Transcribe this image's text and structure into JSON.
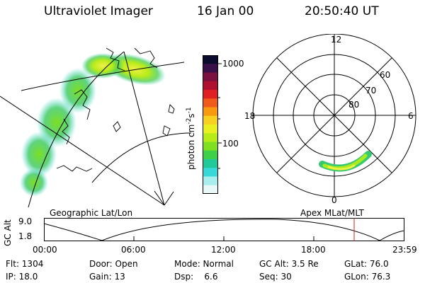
{
  "header": {
    "instrument": "Ultraviolet Imager",
    "date": "16 Jan 00",
    "time": "20:50:40 UT"
  },
  "colorbar": {
    "unit_label": "photon cm^-2 s^-1",
    "ticks": [
      "1000",
      "100"
    ],
    "colors": [
      "#0b0b2e",
      "#3a0f4a",
      "#7a1140",
      "#b01030",
      "#e02020",
      "#f05a1a",
      "#f89a10",
      "#f8d020",
      "#e8f020",
      "#b8ec18",
      "#7ee020",
      "#3ed048",
      "#20c89a",
      "#38d8d8",
      "#a8eeee",
      "#e8f8f8"
    ]
  },
  "polar_plot": {
    "mlt_labels": [
      "12",
      "18",
      "6",
      "0"
    ],
    "lat_labels": [
      "60",
      "70",
      "80"
    ]
  },
  "captions": {
    "left": "Geographic Lat/Lon",
    "right": "Apex MLat/MLT"
  },
  "altitude_plot": {
    "axis_title": "GC Alt",
    "y_ticks": [
      "9.0",
      "1.8"
    ],
    "x_ticks": [
      "00:00",
      "06:00",
      "12:00",
      "18:00",
      "23:59"
    ],
    "marker_color": "#cc2222"
  },
  "info": {
    "flt": "Flt: 1304",
    "door": "Door: Open",
    "mode": "Mode: Normal",
    "gc_alt": "GC Alt: 3.5 Re",
    "glat": "GLat: 76.0",
    "ip": "IP: 18.0",
    "gain": "Gain: 13",
    "dsp": "Dsp:    6.6",
    "seq": "Seq: 30",
    "glon": "GLon: 76.3"
  }
}
